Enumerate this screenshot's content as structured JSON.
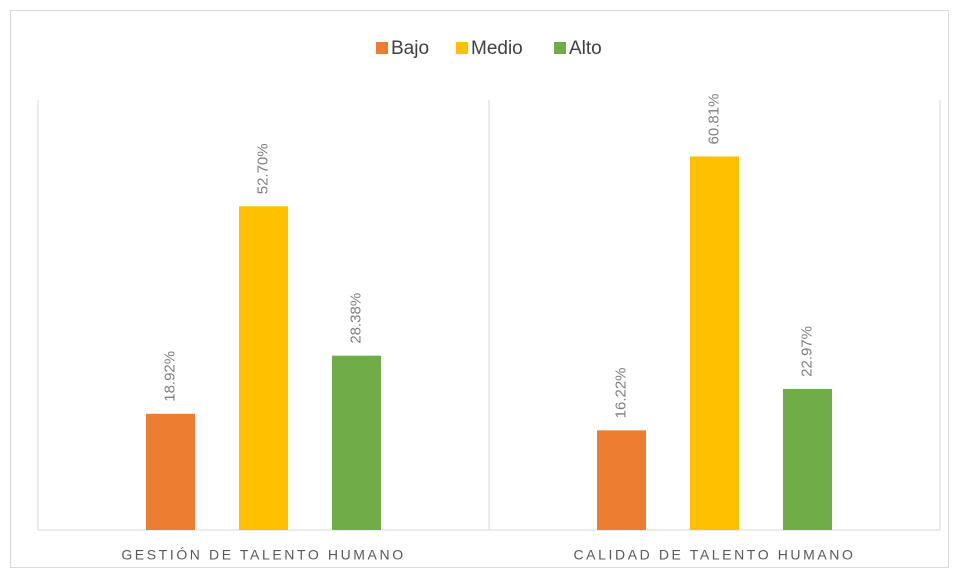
{
  "chart_data": {
    "type": "bar",
    "categories": [
      "GESTIÓN DE TALENTO HUMANO",
      "CALIDAD DE TALENTO HUMANO"
    ],
    "series": [
      {
        "name": "Bajo",
        "color": "#ed7d31",
        "values": [
          18.92,
          16.22
        ],
        "value_labels": [
          "18.92%",
          "16.22%"
        ]
      },
      {
        "name": "Medio",
        "color": "#ffc000",
        "values": [
          52.7,
          60.81
        ],
        "value_labels": [
          "52.70%",
          "60.81%"
        ]
      },
      {
        "name": "Alto",
        "color": "#70ad47",
        "values": [
          28.38,
          22.97
        ],
        "value_labels": [
          "28.38%",
          "22.97%"
        ]
      }
    ],
    "ylim": [
      0,
      70
    ],
    "legend": "top"
  }
}
